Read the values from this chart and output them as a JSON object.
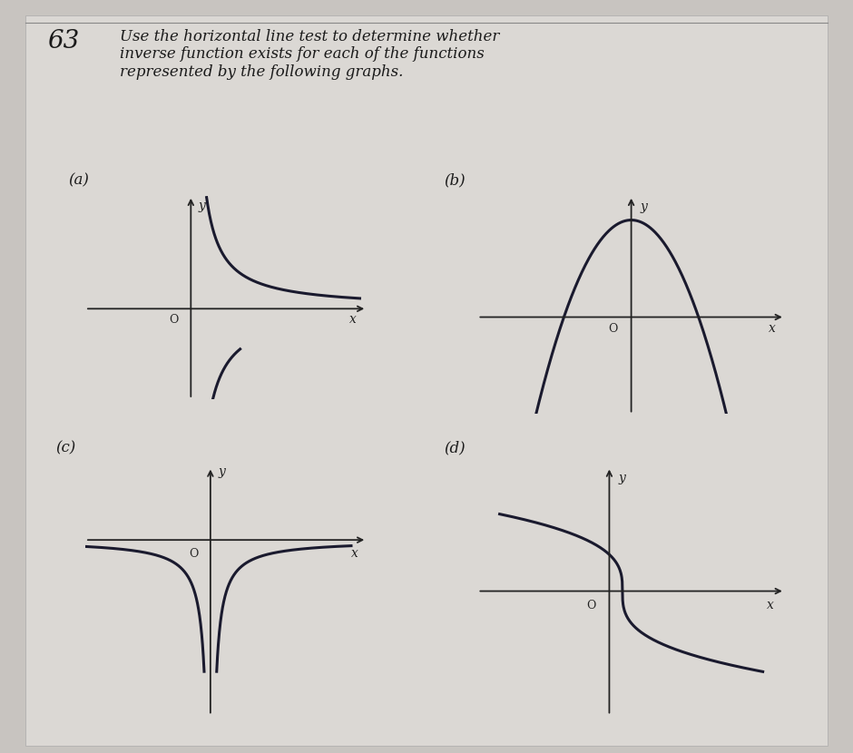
{
  "bg_color": "#c8c4c0",
  "text_color": "#1a1a1a",
  "title_number": "63",
  "title_text": "Use the horizontal line test to determine whether\ninverse function exists for each of the functions\nrepresented by the following graphs.",
  "labels": [
    "(a)",
    "(b)",
    "(c)",
    "(d)"
  ],
  "curve_color": "#1a1a2e",
  "axis_color": "#222222",
  "line_width": 2.2,
  "content_bg": "#c8c4c0"
}
